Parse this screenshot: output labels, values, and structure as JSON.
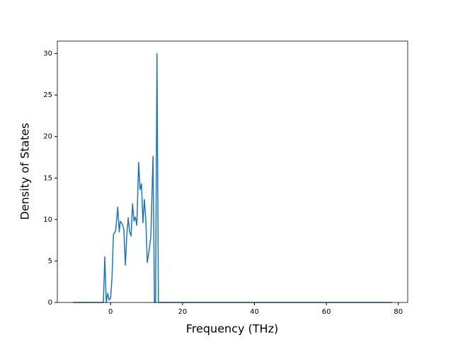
{
  "chart_data": {
    "type": "line",
    "x_label": "Frequency (THz)",
    "y_label": "Density of States",
    "x": [
      -10.4,
      -2.0,
      -1.6,
      -1.2,
      -0.8,
      -0.4,
      0.0,
      0.4,
      0.8,
      1.4,
      2.0,
      2.4,
      2.7,
      3.3,
      3.7,
      4.1,
      4.5,
      4.9,
      5.3,
      5.7,
      6.1,
      6.5,
      6.9,
      7.3,
      7.8,
      8.2,
      8.6,
      9.0,
      9.4,
      9.8,
      10.2,
      10.8,
      11.2,
      11.8,
      12.2,
      12.5,
      12.9,
      13.3,
      78.2
    ],
    "series": [
      {
        "color": "#1f77b4",
        "values": [
          0,
          0,
          5.5,
          0,
          1.1,
          0.3,
          0.5,
          3,
          8.2,
          8.6,
          11.5,
          8.5,
          9.8,
          9.4,
          8.8,
          4.5,
          8,
          10.2,
          8.5,
          8.0,
          11.9,
          9.8,
          10.3,
          9.3,
          16.9,
          13.6,
          14.3,
          9.6,
          12.4,
          10.0,
          4.8,
          6.5,
          8.0,
          17.6,
          0,
          0,
          30,
          0,
          0
        ]
      }
    ],
    "xlim": [
      -14.8,
      82.6
    ],
    "ylim": [
      0,
      31.5
    ],
    "xticks": [
      0,
      20,
      40,
      60,
      80
    ],
    "yticks": [
      0,
      5,
      10,
      15,
      20,
      25,
      30
    ]
  }
}
